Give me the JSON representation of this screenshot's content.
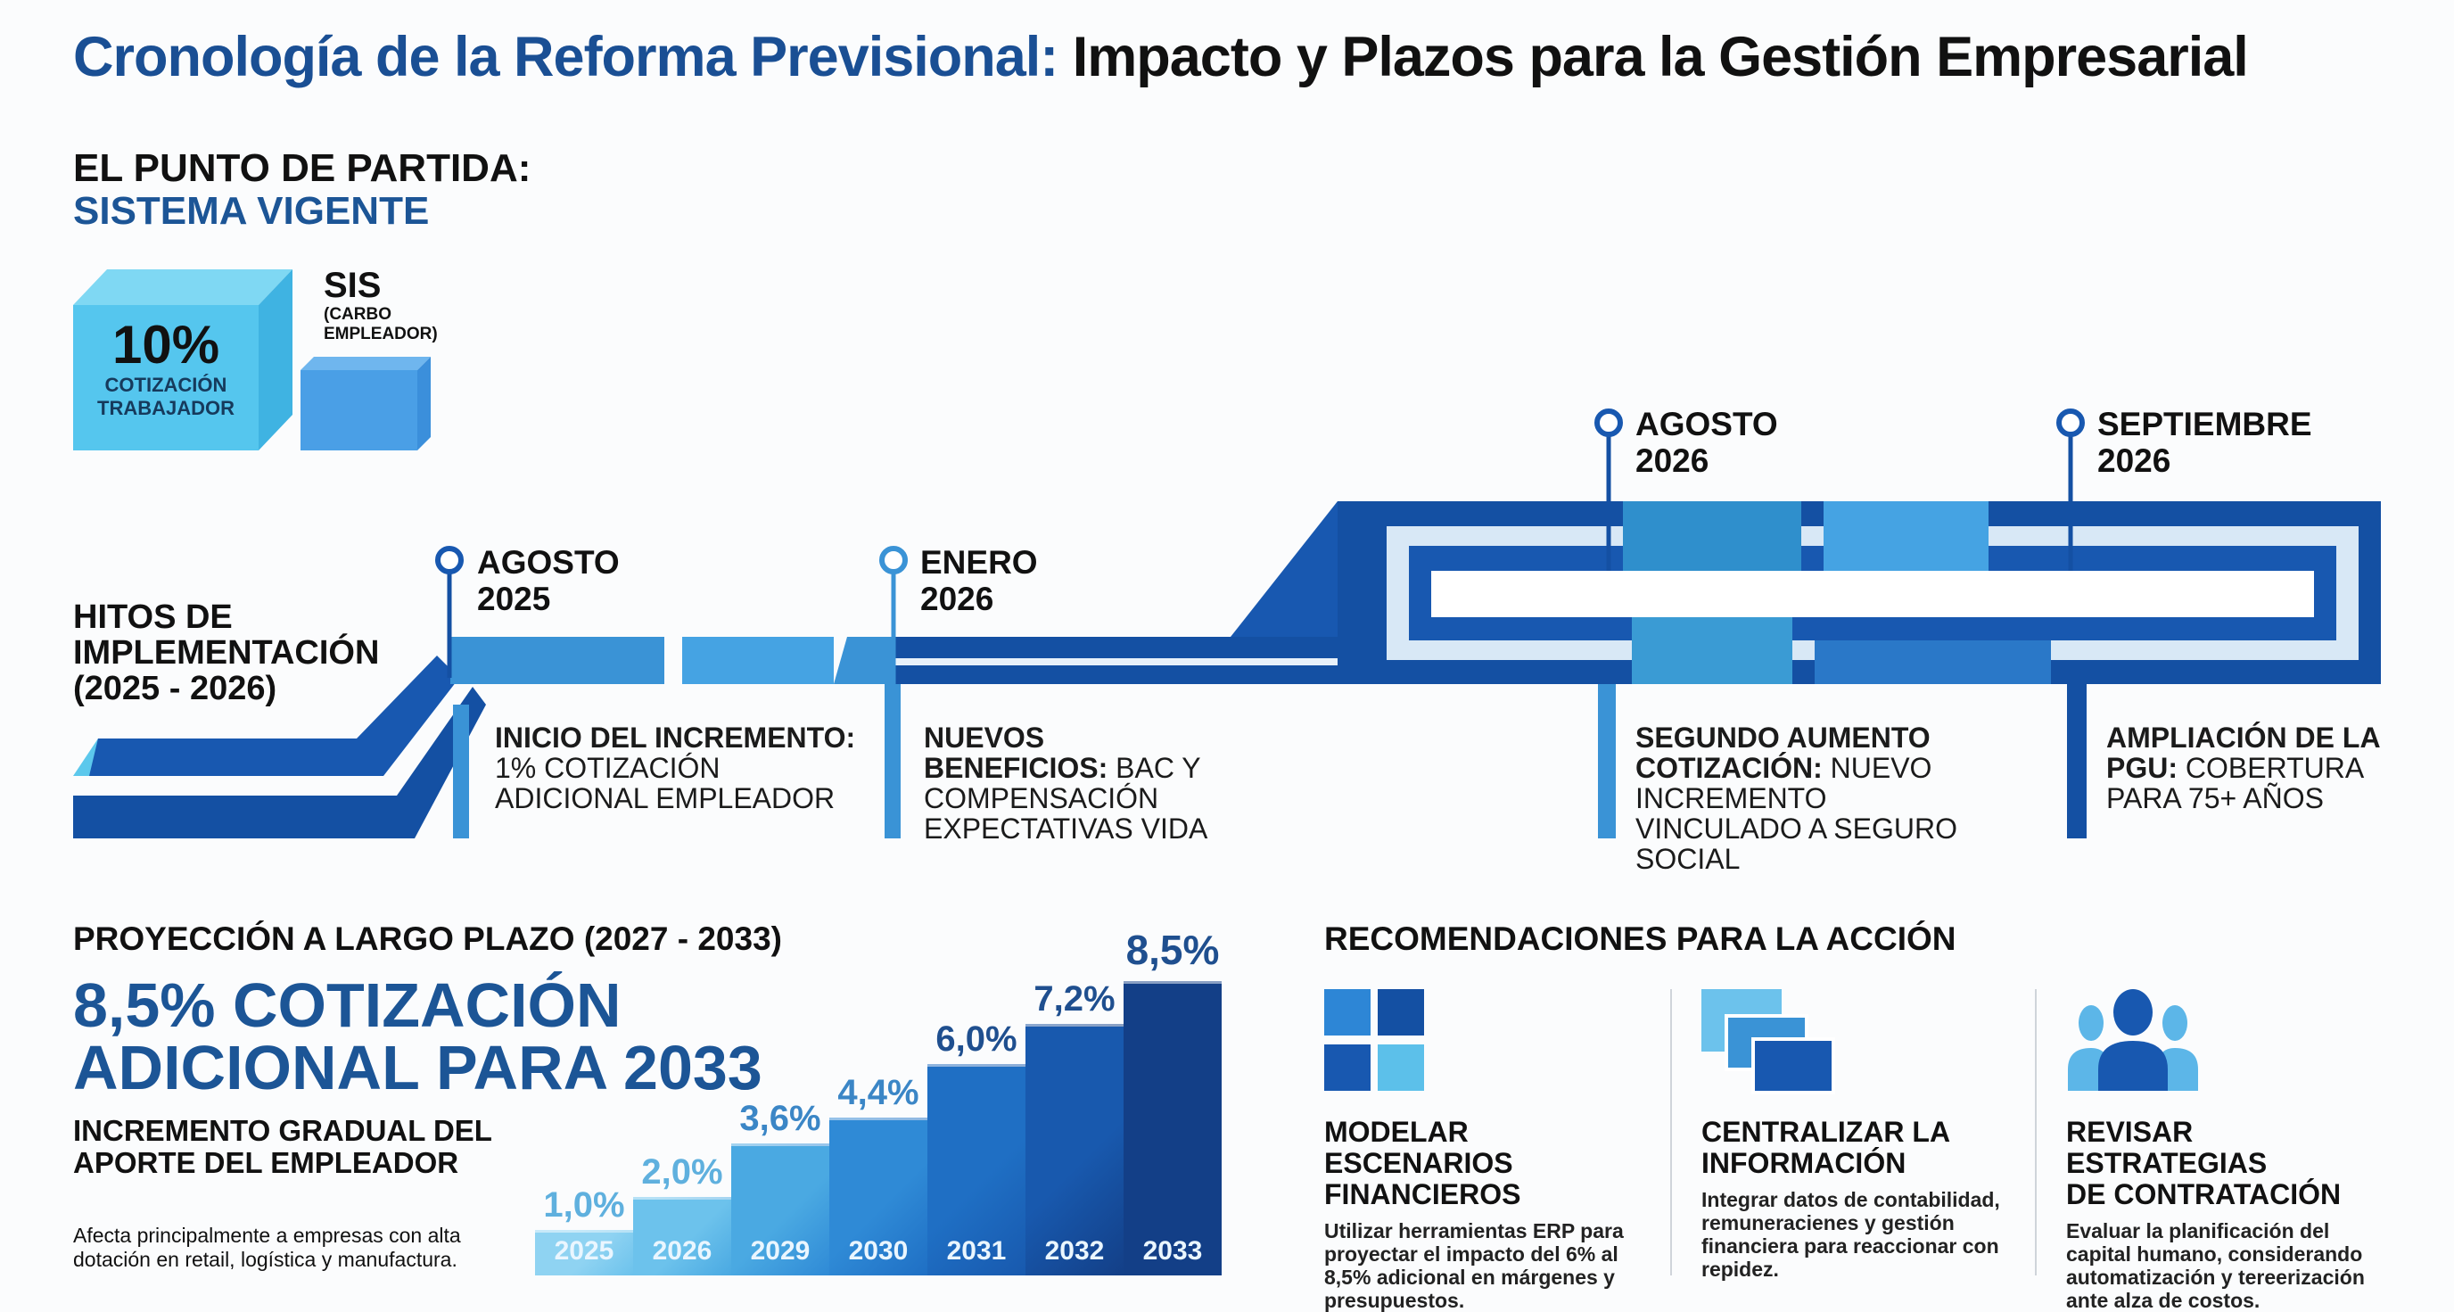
{
  "title": {
    "highlight": "Cronología de la Reforma Previsional:",
    "rest": " Impacto y Plazos para la Gestión Empresarial"
  },
  "starting_point": {
    "heading": "EL PUNTO DE PARTIDA:",
    "subheading": "SISTEMA VIGENTE",
    "worker_pct": "10%",
    "worker_label_1": "COTIZACIÓN",
    "worker_label_2": "TRABAJADOR",
    "sis_label": "SIS",
    "sis_sub_1": "(CARBO",
    "sis_sub_2": "EMPLEADOR)"
  },
  "timeline": {
    "heading_1": "HITOS DE",
    "heading_2": "IMPLEMENTACIÓN",
    "heading_3": "(2025 - 2026)",
    "milestones": [
      {
        "month": "AGOSTO",
        "year": "2025",
        "bold": "INICIO DEL INCREMENTO:",
        "text": "1% COTIZACIÓN ADICIONAL EMPLEADOR"
      },
      {
        "month": "ENERO",
        "year": "2026",
        "bold": "NUEVOS BENEFICIOS:",
        "text": "BAC Y COMPENSACIÓN EXPECTATIVAS VIDA"
      },
      {
        "month": "AGOSTO",
        "year": "2026",
        "bold": "SEGUNDO AUMENTO COTIZACIÓN:",
        "text": "NUEVO INCREMENTO VINCULADO A SEGURO SOCIAL"
      },
      {
        "month": "SEPTIEMBRE",
        "year": "2026",
        "bold": "AMPLIACIÓN DE LA PGU:",
        "text": "COBERTURA PARA 75+ AÑOS"
      }
    ]
  },
  "projection": {
    "heading": "PROYECCIÓN A LARGO PLAZO (2027 - 2033)",
    "big_1": "8,5% COTIZACIÓN",
    "big_2": "ADICIONAL PARA 2033",
    "sub_1": "INCREMENTO GRADUAL DEL",
    "sub_2": "APORTE DEL EMPLEADOR",
    "note_1": "Afecta principalmente a empresas con alta",
    "note_2": "dotación en retail, logística y manufactura."
  },
  "chart_data": {
    "type": "bar",
    "categories": [
      "2025",
      "2026",
      "2029",
      "2030",
      "2031",
      "2032",
      "2033"
    ],
    "values": [
      1.0,
      2.0,
      3.6,
      4.4,
      6.0,
      7.2,
      8.5
    ],
    "labels": [
      "1,0%",
      "2,0%",
      "3,6%",
      "4,4%",
      "6,0%",
      "7,2%",
      "8,5%"
    ],
    "colors": [
      "#8fd3f2",
      "#6cc2ec",
      "#4aa9e2",
      "#2f8ad6",
      "#1f6fc4",
      "#1859ae",
      "#133f87"
    ]
  },
  "recommendations": {
    "heading": "RECOMENDACIONES PARA LA ACCIÓN",
    "items": [
      {
        "icon": "grid-icon",
        "head_1": "MODELAR ESCENARIOS",
        "head_2": "FINANCIEROS",
        "body": "Utilizar herramientas ERP para proyectar el impacto del 6% al 8,5% adicional en márgenes y presupuestos."
      },
      {
        "icon": "stacked-documents-icon",
        "head_1": "CENTRALIZAR LA",
        "head_2": "INFORMACIÓN",
        "body": "Integrar datos de contabilidad, remuneracienes y gestión financiera para reaccionar con repidez."
      },
      {
        "icon": "people-group-icon",
        "head_1": "REVISAR ESTRATEGIAS",
        "head_2": "DE CONTRATACIÓN",
        "body": "Evaluar la planificación del capital humano, considerando automatización y tereerización ante alza de costos."
      }
    ]
  },
  "colors": {
    "title_blue": "#1a4f94",
    "dark_blue": "#1450a3",
    "mid_blue": "#2f8fd6",
    "light_blue": "#55c6ee"
  }
}
